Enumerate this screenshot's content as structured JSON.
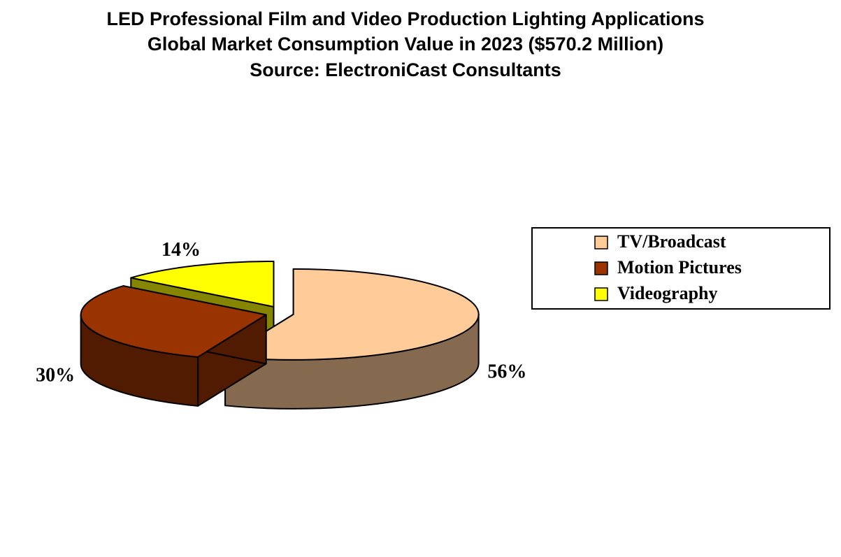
{
  "chart_data": {
    "type": "pie",
    "title": [
      "LED Professional Film and Video Production Lighting Applications",
      "Global Market Consumption Value in 2023 ($570.2 Million)",
      "Source: ElectroniCast Consultants"
    ],
    "categories": [
      "TV/Broadcast",
      "Motion Pictures",
      "Videography"
    ],
    "values": [
      56,
      30,
      14
    ],
    "value_labels": [
      "56%",
      "30%",
      "14%"
    ],
    "colors": [
      "#ffcc99",
      "#993300",
      "#ffff00"
    ],
    "legend": "right"
  }
}
